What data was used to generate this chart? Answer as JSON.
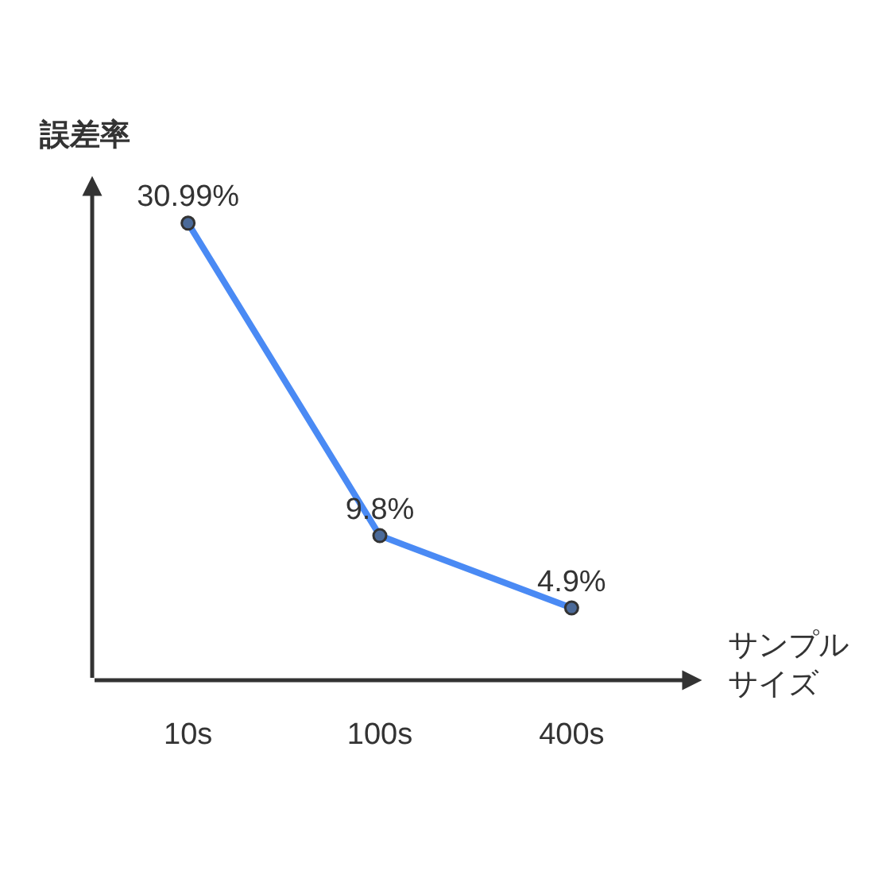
{
  "chart_data": {
    "type": "line",
    "xlabel": "サンプルサイズ",
    "ylabel": "誤差率",
    "categories": [
      "10s",
      "100s",
      "400s"
    ],
    "series": [
      {
        "color": "#4a8af4",
        "values": [
          30.99,
          9.8,
          4.9
        ],
        "value_labels": [
          "30.99%",
          "9.8%",
          "4.9%"
        ]
      }
    ],
    "marker": "circle",
    "line_style": "solid",
    "grid": false
  }
}
